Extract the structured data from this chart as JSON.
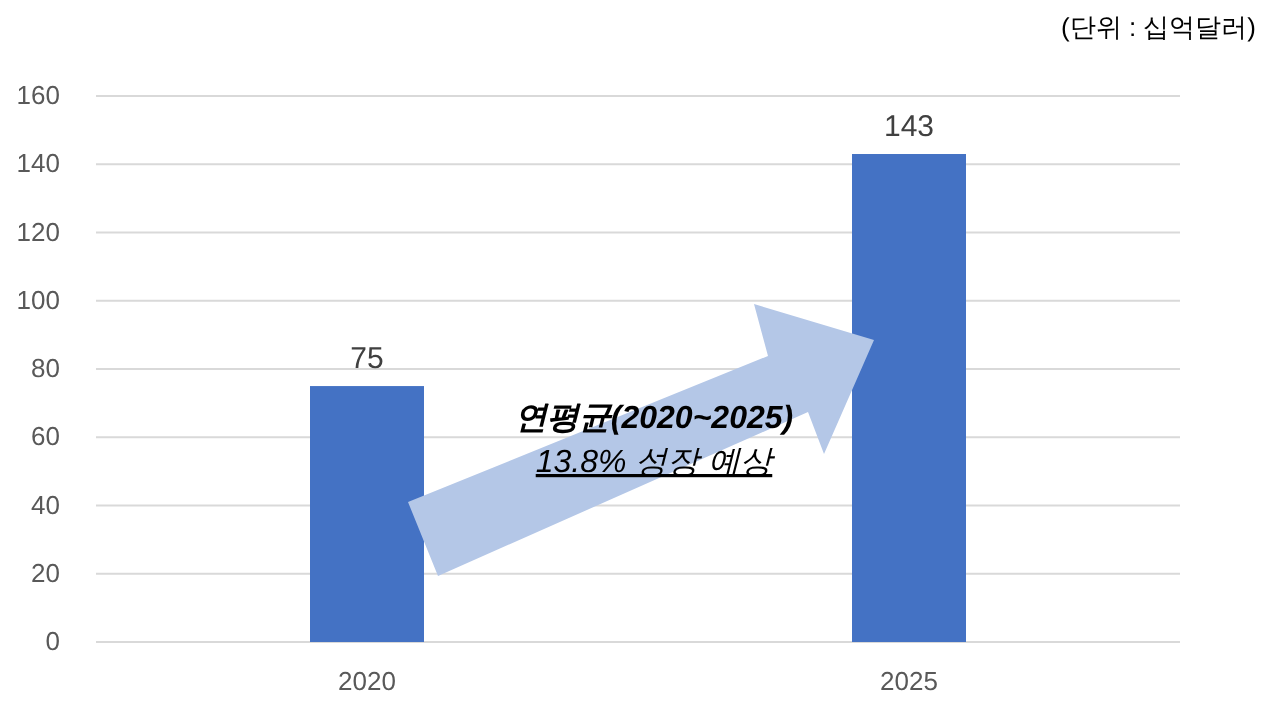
{
  "chart_data": {
    "type": "bar",
    "categories": [
      "2020",
      "2025"
    ],
    "values": [
      75,
      143
    ],
    "color": "#4472c4",
    "ylim": [
      0,
      160
    ],
    "yticks": [
      0,
      20,
      40,
      60,
      80,
      100,
      120,
      140,
      160
    ],
    "grid": "y",
    "data_labels": true,
    "annotations": [
      "(단위 : 십억달러)",
      "연평균(2020~2025)",
      "13.8% 성장 예상"
    ]
  }
}
